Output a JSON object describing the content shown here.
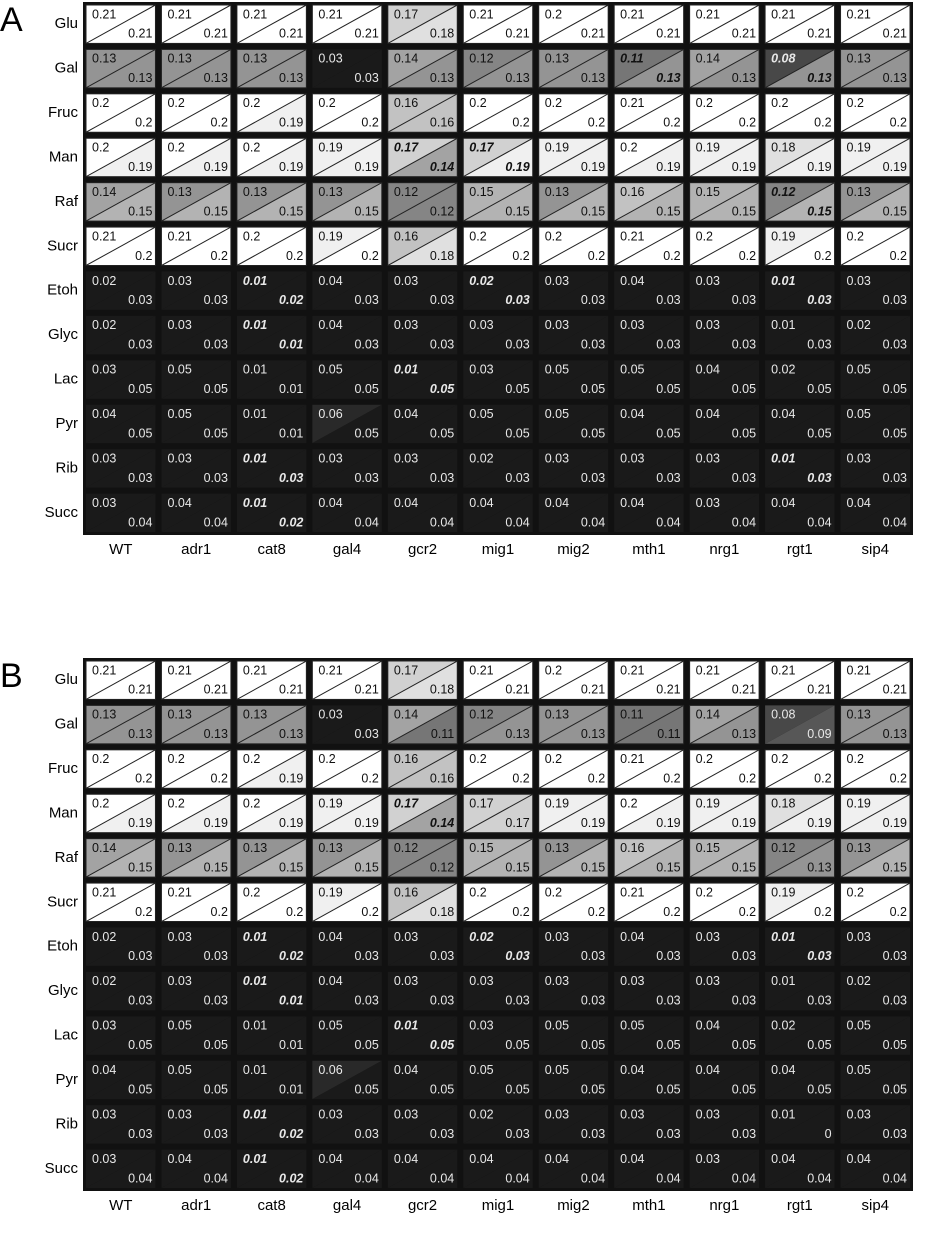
{
  "chart_data": [
    {
      "type": "heatmap",
      "label": "A",
      "rows": [
        "Glu",
        "Gal",
        "Fruc",
        "Man",
        "Raf",
        "Sucr",
        "Etoh",
        "Glyc",
        "Lac",
        "Pyr",
        "Rib",
        "Succ"
      ],
      "columns": [
        "WT",
        "adr1",
        "cat8",
        "gal4",
        "gcr2",
        "mig1",
        "mig2",
        "mth1",
        "nrg1",
        "rgt1",
        "sip4"
      ],
      "upper": [
        [
          0.21,
          0.21,
          0.21,
          0.21,
          0.17,
          0.21,
          0.2,
          0.21,
          0.21,
          0.21,
          0.21
        ],
        [
          0.13,
          0.13,
          0.13,
          0.03,
          0.14,
          0.12,
          0.13,
          0.11,
          0.14,
          0.08,
          0.13
        ],
        [
          0.2,
          0.2,
          0.2,
          0.2,
          0.16,
          0.2,
          0.2,
          0.21,
          0.2,
          0.2,
          0.2
        ],
        [
          0.2,
          0.2,
          0.2,
          0.19,
          0.17,
          0.17,
          0.19,
          0.2,
          0.19,
          0.18,
          0.19
        ],
        [
          0.14,
          0.13,
          0.13,
          0.13,
          0.12,
          0.15,
          0.13,
          0.16,
          0.15,
          0.12,
          0.13
        ],
        [
          0.21,
          0.21,
          0.2,
          0.19,
          0.16,
          0.2,
          0.2,
          0.21,
          0.2,
          0.19,
          0.2
        ],
        [
          0.02,
          0.03,
          0.01,
          0.04,
          0.03,
          0.02,
          0.03,
          0.04,
          0.03,
          0.01,
          0.03
        ],
        [
          0.02,
          0.03,
          0.01,
          0.04,
          0.03,
          0.03,
          0.03,
          0.03,
          0.03,
          0.01,
          0.02
        ],
        [
          0.03,
          0.05,
          0.01,
          0.05,
          0.01,
          0.03,
          0.05,
          0.05,
          0.04,
          0.02,
          0.05
        ],
        [
          0.04,
          0.05,
          0.01,
          0.06,
          0.04,
          0.05,
          0.05,
          0.04,
          0.04,
          0.04,
          0.05
        ],
        [
          0.03,
          0.03,
          0.01,
          0.03,
          0.03,
          0.02,
          0.03,
          0.03,
          0.03,
          0.01,
          0.03
        ],
        [
          0.03,
          0.04,
          0.01,
          0.04,
          0.04,
          0.04,
          0.04,
          0.04,
          0.03,
          0.04,
          0.04
        ]
      ],
      "lower": [
        [
          0.21,
          0.21,
          0.21,
          0.21,
          0.18,
          0.21,
          0.21,
          0.21,
          0.21,
          0.21,
          0.21
        ],
        [
          0.13,
          0.13,
          0.13,
          0.03,
          0.13,
          0.13,
          0.13,
          0.13,
          0.13,
          0.13,
          0.13
        ],
        [
          0.2,
          0.2,
          0.19,
          0.2,
          0.16,
          0.2,
          0.2,
          0.2,
          0.2,
          0.2,
          0.2
        ],
        [
          0.19,
          0.19,
          0.19,
          0.19,
          0.14,
          0.19,
          0.19,
          0.19,
          0.19,
          0.19,
          0.19
        ],
        [
          0.15,
          0.15,
          0.15,
          0.15,
          0.12,
          0.15,
          0.15,
          0.15,
          0.15,
          0.15,
          0.15
        ],
        [
          0.2,
          0.2,
          0.2,
          0.2,
          0.18,
          0.2,
          0.2,
          0.2,
          0.2,
          0.2,
          0.2
        ],
        [
          0.03,
          0.03,
          0.02,
          0.03,
          0.03,
          0.03,
          0.03,
          0.03,
          0.03,
          0.03,
          0.03
        ],
        [
          0.03,
          0.03,
          0.01,
          0.03,
          0.03,
          0.03,
          0.03,
          0.03,
          0.03,
          0.03,
          0.03
        ],
        [
          0.05,
          0.05,
          0.01,
          0.05,
          0.05,
          0.05,
          0.05,
          0.05,
          0.05,
          0.05,
          0.05
        ],
        [
          0.05,
          0.05,
          0.01,
          0.05,
          0.05,
          0.05,
          0.05,
          0.05,
          0.05,
          0.05,
          0.05
        ],
        [
          0.03,
          0.03,
          0.03,
          0.03,
          0.03,
          0.03,
          0.03,
          0.03,
          0.03,
          0.03,
          0.03
        ],
        [
          0.04,
          0.04,
          0.02,
          0.04,
          0.04,
          0.04,
          0.04,
          0.04,
          0.04,
          0.04,
          0.04
        ]
      ],
      "bold": [
        [
          1,
          7
        ],
        [
          1,
          9
        ],
        [
          3,
          4
        ],
        [
          3,
          5
        ],
        [
          4,
          9
        ],
        [
          6,
          2
        ],
        [
          6,
          5
        ],
        [
          6,
          9
        ],
        [
          7,
          2
        ],
        [
          8,
          4
        ],
        [
          10,
          2
        ],
        [
          10,
          9
        ],
        [
          11,
          2
        ]
      ],
      "color_range": [
        0.05,
        0.2
      ]
    },
    {
      "type": "heatmap",
      "label": "B",
      "rows": [
        "Glu",
        "Gal",
        "Fruc",
        "Man",
        "Raf",
        "Sucr",
        "Etoh",
        "Glyc",
        "Lac",
        "Pyr",
        "Rib",
        "Succ"
      ],
      "columns": [
        "WT",
        "adr1",
        "cat8",
        "gal4",
        "gcr2",
        "mig1",
        "mig2",
        "mth1",
        "nrg1",
        "rgt1",
        "sip4"
      ],
      "upper": [
        [
          0.21,
          0.21,
          0.21,
          0.21,
          0.17,
          0.21,
          0.2,
          0.21,
          0.21,
          0.21,
          0.21
        ],
        [
          0.13,
          0.13,
          0.13,
          0.03,
          0.14,
          0.12,
          0.13,
          0.11,
          0.14,
          0.08,
          0.13
        ],
        [
          0.2,
          0.2,
          0.2,
          0.2,
          0.16,
          0.2,
          0.2,
          0.21,
          0.2,
          0.2,
          0.2
        ],
        [
          0.2,
          0.2,
          0.2,
          0.19,
          0.17,
          0.17,
          0.19,
          0.2,
          0.19,
          0.18,
          0.19
        ],
        [
          0.14,
          0.13,
          0.13,
          0.13,
          0.12,
          0.15,
          0.13,
          0.16,
          0.15,
          0.12,
          0.13
        ],
        [
          0.21,
          0.21,
          0.2,
          0.19,
          0.16,
          0.2,
          0.2,
          0.21,
          0.2,
          0.19,
          0.2
        ],
        [
          0.02,
          0.03,
          0.01,
          0.04,
          0.03,
          0.02,
          0.03,
          0.04,
          0.03,
          0.01,
          0.03
        ],
        [
          0.02,
          0.03,
          0.01,
          0.04,
          0.03,
          0.03,
          0.03,
          0.03,
          0.03,
          0.01,
          0.02
        ],
        [
          0.03,
          0.05,
          0.01,
          0.05,
          0.01,
          0.03,
          0.05,
          0.05,
          0.04,
          0.02,
          0.05
        ],
        [
          0.04,
          0.05,
          0.01,
          0.06,
          0.04,
          0.05,
          0.05,
          0.04,
          0.04,
          0.04,
          0.05
        ],
        [
          0.03,
          0.03,
          0.01,
          0.03,
          0.03,
          0.02,
          0.03,
          0.03,
          0.03,
          0.01,
          0.03
        ],
        [
          0.03,
          0.04,
          0.01,
          0.04,
          0.04,
          0.04,
          0.04,
          0.04,
          0.03,
          0.04,
          0.04
        ]
      ],
      "lower": [
        [
          0.21,
          0.21,
          0.21,
          0.21,
          0.18,
          0.21,
          0.21,
          0.21,
          0.21,
          0.21,
          0.21
        ],
        [
          0.13,
          0.13,
          0.13,
          0.03,
          0.11,
          0.13,
          0.13,
          0.11,
          0.13,
          0.09,
          0.13
        ],
        [
          0.2,
          0.2,
          0.19,
          0.2,
          0.16,
          0.2,
          0.2,
          0.2,
          0.2,
          0.2,
          0.2
        ],
        [
          0.19,
          0.19,
          0.19,
          0.19,
          0.14,
          0.17,
          0.19,
          0.19,
          0.19,
          0.19,
          0.19
        ],
        [
          0.15,
          0.15,
          0.15,
          0.15,
          0.12,
          0.15,
          0.15,
          0.15,
          0.15,
          0.13,
          0.15
        ],
        [
          0.2,
          0.2,
          0.2,
          0.2,
          0.18,
          0.2,
          0.2,
          0.2,
          0.2,
          0.2,
          0.2
        ],
        [
          0.03,
          0.03,
          0.02,
          0.03,
          0.03,
          0.03,
          0.03,
          0.03,
          0.03,
          0.03,
          0.03
        ],
        [
          0.03,
          0.03,
          0.01,
          0.03,
          0.03,
          0.03,
          0.03,
          0.03,
          0.03,
          0.03,
          0.03
        ],
        [
          0.05,
          0.05,
          0.01,
          0.05,
          0.05,
          0.05,
          0.05,
          0.05,
          0.05,
          0.05,
          0.05
        ],
        [
          0.05,
          0.05,
          0.01,
          0.05,
          0.05,
          0.05,
          0.05,
          0.05,
          0.05,
          0.05,
          0.05
        ],
        [
          0.03,
          0.03,
          0.02,
          0.03,
          0.03,
          0.03,
          0.03,
          0.03,
          0.03,
          0,
          0.03
        ],
        [
          0.04,
          0.04,
          0.02,
          0.04,
          0.04,
          0.04,
          0.04,
          0.04,
          0.04,
          0.04,
          0.04
        ]
      ],
      "bold": [
        [
          3,
          4
        ],
        [
          6,
          2
        ],
        [
          6,
          5
        ],
        [
          6,
          9
        ],
        [
          7,
          2
        ],
        [
          8,
          4
        ],
        [
          10,
          2
        ],
        [
          11,
          2
        ]
      ],
      "color_range": [
        0.05,
        0.2
      ]
    }
  ]
}
